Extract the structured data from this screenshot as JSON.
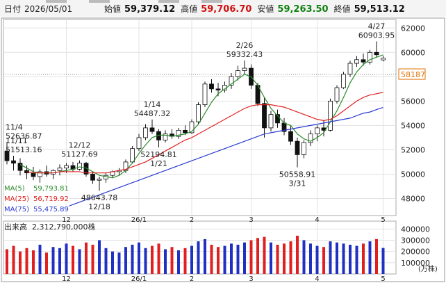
{
  "header": {
    "date_label": "日付",
    "date": "2026/05/01",
    "items": [
      {
        "label": "始値",
        "value": "59,379.12",
        "color": "#111111"
      },
      {
        "label": "高値",
        "value": "59,706.70",
        "color": "#d01010"
      },
      {
        "label": "安値",
        "value": "59,263.50",
        "color": "#108010"
      },
      {
        "label": "終値",
        "value": "59,513.12",
        "color": "#111111"
      }
    ]
  },
  "chart_data": [
    {
      "type": "candlestick",
      "categories": [
        null,
        null,
        null,
        null,
        null,
        null,
        null,
        null,
        null,
        "12",
        null,
        null,
        null,
        null,
        null,
        null,
        null,
        null,
        null,
        null,
        "26/1",
        null,
        null,
        null,
        null,
        null,
        null,
        null,
        "2",
        null,
        null,
        null,
        null,
        null,
        null,
        null,
        null,
        "3",
        null,
        null,
        null,
        null,
        null,
        null,
        null,
        null,
        null,
        "4",
        null,
        null,
        null,
        null,
        null,
        null,
        null,
        null,
        null,
        "5"
      ],
      "open": [
        51900,
        51100,
        50900,
        50300,
        50100,
        49800,
        50200,
        50000,
        50300,
        50500,
        50700,
        50400,
        50900,
        50000,
        49500,
        49600,
        49900,
        50200,
        50300,
        51000,
        52100,
        53000,
        53800,
        53500,
        52800,
        53300,
        53100,
        53600,
        53400,
        54300,
        55700,
        57400,
        57000,
        56900,
        57300,
        58000,
        58500,
        58700,
        57300,
        55800,
        53800,
        54900,
        54200,
        53500,
        52700,
        51600,
        52600,
        53300,
        53800,
        53600,
        56000,
        57100,
        58200,
        59100,
        59400,
        59200,
        60000,
        59379.12
      ],
      "high": [
        52636.87,
        51513.16,
        51300,
        50700,
        50600,
        50400,
        50700,
        50400,
        50800,
        50900,
        51000,
        51127.69,
        51000,
        50200,
        49800,
        50100,
        50300,
        50500,
        51200,
        52300,
        53300,
        54100,
        54487.32,
        53700,
        53600,
        53700,
        53800,
        54000,
        54500,
        55900,
        57600,
        57800,
        57500,
        57600,
        58300,
        58900,
        59332.43,
        59000,
        57500,
        56300,
        55200,
        55300,
        54600,
        54000,
        53000,
        52800,
        53600,
        54000,
        54400,
        56200,
        57300,
        58400,
        59300,
        59700,
        59900,
        60200,
        60903.95,
        59706.7
      ],
      "low": [
        50800,
        50300,
        49900,
        49600,
        49500,
        49300,
        49800,
        49600,
        49900,
        50100,
        50200,
        50300,
        49800,
        49200,
        48643.78,
        49300,
        49700,
        49900,
        50100,
        50900,
        51900,
        52800,
        53300,
        52194.81,
        52600,
        52900,
        52900,
        53200,
        53300,
        54100,
        55500,
        56700,
        56400,
        56700,
        57000,
        57700,
        58200,
        57000,
        55600,
        53000,
        53500,
        53800,
        53200,
        52400,
        50558.91,
        51300,
        52300,
        52700,
        53100,
        53500,
        55800,
        57000,
        58000,
        58800,
        58900,
        59000,
        59600,
        59263.5
      ],
      "close": [
        51100,
        50900,
        50300,
        50100,
        49800,
        50200,
        50000,
        50300,
        50500,
        50700,
        50400,
        50900,
        50000,
        49500,
        49600,
        49900,
        50200,
        50300,
        51000,
        52100,
        53000,
        53800,
        53500,
        52800,
        53300,
        53100,
        53600,
        53400,
        54300,
        55700,
        57400,
        57000,
        56900,
        57300,
        58000,
        58500,
        58700,
        57300,
        55800,
        53800,
        54900,
        54200,
        53500,
        52700,
        51600,
        52600,
        53300,
        53800,
        53600,
        56000,
        57100,
        58200,
        59100,
        59400,
        59200,
        60000,
        59800,
        59513.12
      ],
      "up_color": "#ffffff",
      "down_color": "#111111",
      "series": [
        {
          "name": "MA(5)",
          "legend_value": "59,793.81",
          "color": "#2a8a2a",
          "values": [
            null,
            null,
            50800,
            50500,
            50200,
            50100,
            50100,
            50100,
            50200,
            50300,
            50400,
            50600,
            50500,
            50200,
            49900,
            49800,
            49700,
            49900,
            50300,
            50900,
            51700,
            52400,
            53000,
            53200,
            53200,
            53100,
            53200,
            53300,
            53500,
            54100,
            55000,
            55900,
            56600,
            57000,
            57400,
            57800,
            58200,
            58000,
            57300,
            56300,
            55400,
            54800,
            54200,
            54000,
            53300,
            52900,
            52700,
            53000,
            53400,
            54300,
            55200,
            56300,
            57500,
            58400,
            59000,
            59400,
            59600,
            59793.81
          ]
        },
        {
          "name": "MA(25)",
          "legend_value": "56,719.92",
          "color": "#e02020",
          "values": [
            null,
            null,
            null,
            50200,
            50100,
            50100,
            50100,
            50100,
            50200,
            50200,
            50200,
            50200,
            50100,
            50100,
            50100,
            50100,
            50200,
            50300,
            50400,
            50600,
            50800,
            51000,
            51300,
            51600,
            51900,
            52200,
            52500,
            52800,
            53000,
            53300,
            53600,
            53900,
            54200,
            54500,
            54800,
            55100,
            55400,
            55600,
            55700,
            55700,
            55700,
            55600,
            55500,
            55300,
            55100,
            54900,
            54700,
            54500,
            54400,
            54500,
            54800,
            55200,
            55600,
            56000,
            56300,
            56500,
            56600,
            56719.92
          ]
        },
        {
          "name": "MA(75)",
          "legend_value": "55,475.89",
          "color": "#2a3ad0",
          "values": [
            null,
            null,
            null,
            null,
            null,
            null,
            null,
            null,
            47100,
            47300,
            47500,
            47700,
            47900,
            48100,
            48300,
            48500,
            48700,
            48900,
            49100,
            49300,
            49500,
            49700,
            49900,
            50100,
            50300,
            50500,
            50700,
            50900,
            51100,
            51300,
            51500,
            51700,
            51900,
            52100,
            52300,
            52500,
            52700,
            52900,
            53100,
            53300,
            53400,
            53500,
            53600,
            53700,
            53800,
            53900,
            54000,
            54100,
            54200,
            54300,
            54400,
            54500,
            54600,
            54800,
            55000,
            55100,
            55300,
            55475.89
          ]
        }
      ],
      "annotations": [
        {
          "date": "11/4",
          "value": 52636.87
        },
        {
          "date": "11/11",
          "value": 51513.16
        },
        {
          "date": "12/12",
          "value": 51127.69
        },
        {
          "date": "12/18",
          "value": 48643.78
        },
        {
          "date": "1/14",
          "value": 54487.32
        },
        {
          "date": "1/21",
          "value": 52194.81
        },
        {
          "date": "2/26",
          "value": 59332.43
        },
        {
          "date": "3/31",
          "value": 50558.91
        },
        {
          "date": "4/27",
          "value": 60903.95
        }
      ],
      "marker_line": 58187,
      "marker_color": "#e07000",
      "ylim": [
        46600,
        62700
      ],
      "yticks": [
        48000,
        50000,
        52000,
        54000,
        56000,
        58000,
        60000,
        62000
      ],
      "grid": true
    },
    {
      "type": "bar",
      "title": "出来高",
      "total": "2,312,790,000株",
      "unit": "(万株)",
      "up_color": "#2030c0",
      "down_color": "#e02020",
      "values": [
        220000,
        250000,
        200000,
        230000,
        210000,
        260000,
        190000,
        240000,
        230000,
        270000,
        250000,
        220000,
        280000,
        260000,
        300000,
        230000,
        200000,
        190000,
        240000,
        260000,
        280000,
        230000,
        250000,
        270000,
        220000,
        240000,
        210000,
        230000,
        250000,
        290000,
        310000,
        260000,
        240000,
        250000,
        270000,
        260000,
        280000,
        300000,
        320000,
        330000,
        280000,
        260000,
        270000,
        290000,
        340000,
        300000,
        270000,
        250000,
        240000,
        290000,
        280000,
        270000,
        260000,
        250000,
        270000,
        290000,
        310000,
        231279
      ],
      "ylim": [
        0,
        470000
      ],
      "yticks": [
        100000,
        200000,
        300000,
        400000
      ],
      "grid": true
    }
  ]
}
